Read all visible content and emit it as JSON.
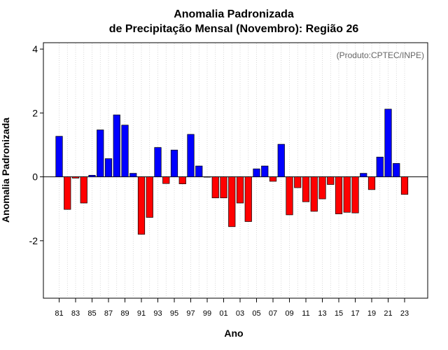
{
  "chart_data": {
    "type": "bar",
    "title_line1": "Anomalia Padronizada",
    "title_line2": "de Precipitação Mensal (Novembro): Região 26",
    "xlabel": "Ano",
    "ylabel": "Anomalia Padronizada",
    "annotation": "(Produto:CPTEC/INPE)",
    "ylim": [
      -3.8,
      4.2
    ],
    "yticks": [
      {
        "value": -2,
        "label": "-2"
      },
      {
        "value": 0,
        "label": "0"
      },
      {
        "value": 2,
        "label": "2"
      },
      {
        "value": 4,
        "label": "4"
      }
    ],
    "tick_labels": [
      "81",
      "83",
      "85",
      "87",
      "89",
      "91",
      "93",
      "95",
      "97",
      "99",
      "01",
      "03",
      "05",
      "07",
      "09",
      "11",
      "13",
      "15",
      "17",
      "19",
      "21",
      "23"
    ],
    "categories": [
      "81",
      "82",
      "83",
      "84",
      "85",
      "86",
      "87",
      "88",
      "89",
      "90",
      "91",
      "92",
      "93",
      "94",
      "95",
      "96",
      "97",
      "98",
      "99",
      "00",
      "01",
      "02",
      "03",
      "04",
      "05",
      "06",
      "07",
      "08",
      "09",
      "10",
      "11",
      "12",
      "13",
      "14",
      "15",
      "16",
      "17",
      "18",
      "19",
      "20",
      "21",
      "22",
      "23"
    ],
    "values": [
      1.27,
      -1.02,
      -0.04,
      -0.82,
      0.05,
      1.47,
      0.57,
      1.94,
      1.62,
      0.11,
      -1.8,
      -1.27,
      0.92,
      -0.21,
      0.84,
      -0.22,
      1.33,
      0.34,
      -0.01,
      -0.66,
      -0.66,
      -1.56,
      -0.82,
      -1.4,
      0.25,
      0.34,
      -0.14,
      1.02,
      -1.19,
      -0.34,
      -0.78,
      -1.08,
      -0.69,
      -0.24,
      -1.16,
      -1.11,
      -1.13,
      0.11,
      -0.4,
      0.62,
      2.12,
      0.42,
      -0.55
    ],
    "colors": {
      "positive": "#0000ff",
      "negative": "#ff0000",
      "grid": "#c8c8c8",
      "axis": "#000000"
    }
  }
}
